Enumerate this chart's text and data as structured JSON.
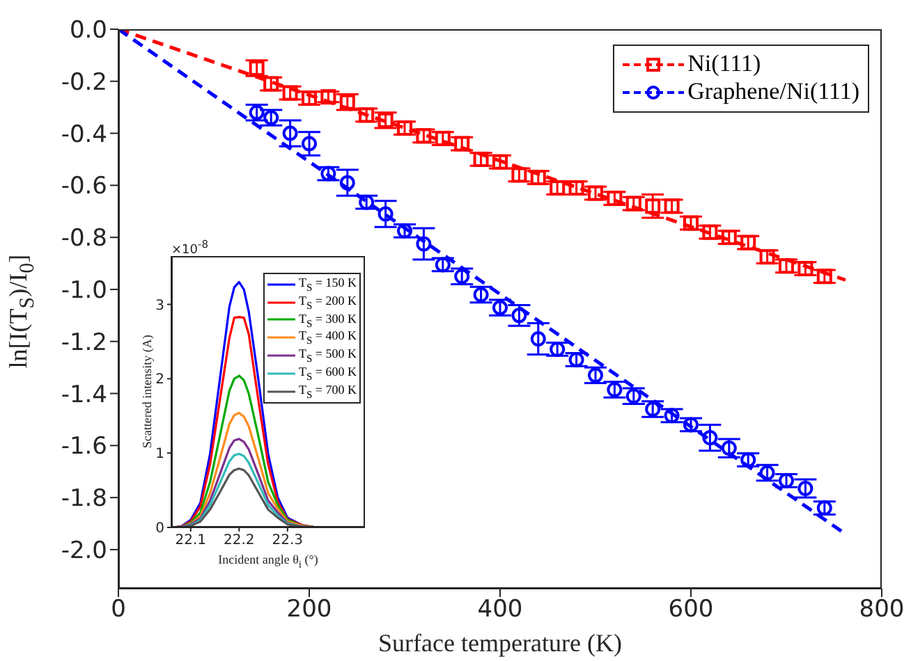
{
  "chart_data": [
    {
      "type": "scatter",
      "xlabel": "Surface temperature (K)",
      "ylabel": "ln[I(T$_{S}$)/I$_{0}$]",
      "xlim": [
        0,
        800
      ],
      "xticks": [
        0,
        200,
        400,
        600,
        800
      ],
      "ylim": [
        -2.15,
        0
      ],
      "yticks": [
        {
          "value": 0,
          "label": "0.0"
        },
        -0.2,
        -0.4,
        -0.6,
        -0.8,
        {
          "value": -1,
          "label": "-1.0"
        },
        -1.2,
        -1.4,
        -1.6,
        -1.8,
        {
          "value": -2,
          "label": "-2.0"
        }
      ],
      "legend": "top right",
      "series": [
        {
          "name": "Ni(111)",
          "marker": "square",
          "color": "#ff0000",
          "x": [
            145,
            160,
            180,
            200,
            220,
            240,
            260,
            280,
            300,
            320,
            340,
            360,
            380,
            400,
            420,
            440,
            460,
            480,
            500,
            520,
            540,
            560,
            580,
            600,
            620,
            640,
            660,
            680,
            700,
            720,
            740
          ],
          "values": [
            -0.15,
            -0.21,
            -0.245,
            -0.265,
            -0.26,
            -0.28,
            -0.33,
            -0.35,
            -0.38,
            -0.41,
            -0.42,
            -0.44,
            -0.5,
            -0.51,
            -0.56,
            -0.57,
            -0.61,
            -0.61,
            -0.63,
            -0.65,
            -0.67,
            -0.68,
            -0.68,
            -0.745,
            -0.78,
            -0.8,
            -0.82,
            -0.875,
            -0.91,
            -0.92,
            -0.95
          ],
          "errors": [
            0.03,
            0.025,
            0.025,
            0.025,
            0.02,
            0.03,
            0.025,
            0.03,
            0.025,
            0.025,
            0.025,
            0.025,
            0.025,
            0.025,
            0.025,
            0.025,
            0.025,
            0.025,
            0.025,
            0.025,
            0.025,
            0.045,
            0.025,
            0.025,
            0.025,
            0.025,
            0.025,
            0.025,
            0.025,
            0.025,
            0.025
          ]
        },
        {
          "name": "Graphene/Ni(111)",
          "marker": "circle",
          "color": "#0000ff",
          "x": [
            145,
            160,
            180,
            200,
            220,
            240,
            260,
            280,
            300,
            320,
            340,
            360,
            380,
            400,
            420,
            440,
            460,
            480,
            500,
            520,
            540,
            560,
            580,
            600,
            620,
            640,
            660,
            680,
            700,
            720,
            740
          ],
          "values": [
            -0.32,
            -0.34,
            -0.4,
            -0.44,
            -0.555,
            -0.59,
            -0.665,
            -0.71,
            -0.775,
            -0.825,
            -0.905,
            -0.95,
            -1.02,
            -1.07,
            -1.1,
            -1.19,
            -1.23,
            -1.27,
            -1.33,
            -1.385,
            -1.41,
            -1.46,
            -1.485,
            -1.52,
            -1.57,
            -1.61,
            -1.655,
            -1.705,
            -1.735,
            -1.765,
            -1.84
          ],
          "errors": [
            0.03,
            0.03,
            0.05,
            0.045,
            0.025,
            0.05,
            0.025,
            0.05,
            0.025,
            0.06,
            0.025,
            0.03,
            0.03,
            0.03,
            0.04,
            0.06,
            0.025,
            0.025,
            0.03,
            0.03,
            0.03,
            0.03,
            0.025,
            0.025,
            0.05,
            0.035,
            0.025,
            0.03,
            0.025,
            0.035,
            0.025
          ]
        },
        {
          "type": "line",
          "line_style": "dashed",
          "color": "#ff0000",
          "x": [
            0,
            762
          ],
          "values": [
            0,
            -0.964
          ]
        },
        {
          "type": "line",
          "line_style": "dashed",
          "color": "#0000ff",
          "x": [
            0,
            762
          ],
          "values": [
            0,
            -1.94
          ]
        }
      ]
    },
    {
      "type": "line",
      "xlabel": "Incident angle θ$_{i}$ (°)",
      "ylabel": "Scattered intensity (A)",
      "annotations": [
        "×10$^{-8}$"
      ],
      "xlim": [
        22.06,
        22.46
      ],
      "xticks": [
        22.1,
        22.2,
        22.3
      ],
      "ylim": [
        0,
        3.65
      ],
      "yticks": [
        0,
        1,
        2,
        3
      ],
      "legend": "top right",
      "x": [
        22.06,
        22.08,
        22.1,
        22.12,
        22.14,
        22.16,
        22.18,
        22.19,
        22.2,
        22.21,
        22.22,
        22.24,
        22.26,
        22.28,
        22.3,
        22.33,
        22.36
      ],
      "series": [
        {
          "name": "T$_{S}$ = 150 K",
          "color": "#0000ff",
          "values": [
            0,
            0.01,
            0.1,
            0.33,
            0.99,
            1.98,
            2.97,
            3.23,
            3.3,
            3.2,
            2.9,
            1.98,
            0.99,
            0.4,
            0.13,
            0.03,
            0
          ]
        },
        {
          "name": "T$_{S}$ = 200 K",
          "color": "#ff0000",
          "values": [
            0,
            0.01,
            0.08,
            0.28,
            0.85,
            1.7,
            2.55,
            2.82,
            2.83,
            2.82,
            2.6,
            1.7,
            0.85,
            0.34,
            0.11,
            0.03,
            0
          ]
        },
        {
          "name": "T$_{S}$ = 300 K",
          "color": "#00aa00",
          "values": [
            0,
            0.01,
            0.06,
            0.2,
            0.61,
            1.22,
            1.84,
            2.0,
            2.04,
            1.98,
            1.8,
            1.22,
            0.61,
            0.3,
            0.1,
            0.02,
            0
          ]
        },
        {
          "name": "T$_{S}$ = 400 K",
          "color": "#ff8c1a",
          "values": [
            0,
            0.01,
            0.05,
            0.15,
            0.46,
            0.92,
            1.39,
            1.51,
            1.54,
            1.49,
            1.36,
            0.92,
            0.46,
            0.25,
            0.08,
            0.02,
            0
          ]
        },
        {
          "name": "T$_{S}$ = 500 K",
          "color": "#7e2f8e",
          "values": [
            0,
            0.01,
            0.04,
            0.12,
            0.36,
            0.71,
            1.07,
            1.17,
            1.19,
            1.15,
            1.05,
            0.71,
            0.36,
            0.2,
            0.06,
            0.01,
            0
          ]
        },
        {
          "name": "T$_{S}$ = 600 K",
          "color": "#33bbbb",
          "values": [
            0,
            0,
            0.03,
            0.1,
            0.3,
            0.59,
            0.89,
            0.97,
            0.99,
            0.96,
            0.87,
            0.59,
            0.3,
            0.16,
            0.05,
            0.01,
            0
          ]
        },
        {
          "name": "T$_{S}$ = 700 K",
          "color": "#555555",
          "values": [
            0,
            0,
            0.02,
            0.08,
            0.24,
            0.47,
            0.71,
            0.77,
            0.79,
            0.77,
            0.7,
            0.47,
            0.24,
            0.13,
            0.04,
            0.01,
            0
          ]
        }
      ]
    }
  ]
}
